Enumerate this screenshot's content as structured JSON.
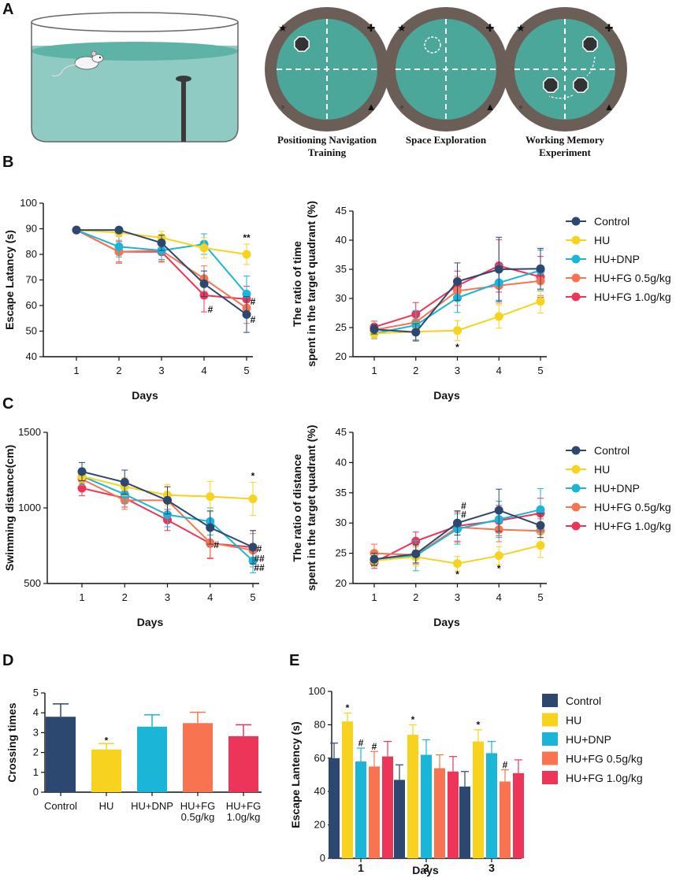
{
  "figure": {
    "panel_labels": [
      "A",
      "B",
      "C",
      "D",
      "E"
    ],
    "series_names": [
      "Control",
      "HU",
      "HU+DNP",
      "HU+FG 0.5g/kg",
      "HU+FG 1.0g/kg"
    ],
    "series_colors": [
      "#2c4770",
      "#f7d31f",
      "#1bb5d8",
      "#f8734f",
      "#ec3559"
    ],
    "pool_colors": {
      "wall": "#666666",
      "water": "#5db3a6",
      "water_light": "#8fcbc2",
      "maze_rim": "#6b5e57",
      "maze_water": "#4aa79a"
    },
    "maze_captions": [
      [
        "Positioning Navigation",
        "Training"
      ],
      [
        "Space Exploration"
      ],
      [
        "Working Memory",
        "Experiment"
      ]
    ],
    "maze_symbols": [
      "★",
      "✚",
      "◦",
      "▲"
    ]
  },
  "chart_data": [
    {
      "id": "B1",
      "type": "line",
      "x": [
        1,
        2,
        3,
        4,
        5
      ],
      "xlabel": "Days",
      "ylabel": "Escape Latancy (s)",
      "ylim": [
        40,
        100
      ],
      "yticks": [
        40,
        50,
        60,
        70,
        80,
        90,
        100
      ],
      "series": [
        {
          "name": "Control",
          "values": [
            89.5,
            89.5,
            84.5,
            68.5,
            56.5
          ],
          "errors": [
            1,
            1,
            3,
            5,
            7
          ]
        },
        {
          "name": "HU",
          "values": [
            89.5,
            88.5,
            86.5,
            82.5,
            80
          ],
          "errors": [
            1,
            1.5,
            2.5,
            4,
            4
          ]
        },
        {
          "name": "HU+DNP",
          "values": [
            89.5,
            83,
            81.5,
            84,
            64.5
          ],
          "errors": [
            1,
            4,
            3.5,
            4,
            7
          ]
        },
        {
          "name": "HU+FG 0.5g/kg",
          "values": [
            89.5,
            81,
            81.5,
            70.5,
            59
          ],
          "errors": [
            1,
            4.5,
            4,
            5,
            6
          ]
        },
        {
          "name": "HU+FG 1.0g/kg",
          "values": [
            89.5,
            81,
            81,
            64,
            62.5
          ],
          "errors": [
            1,
            4,
            4,
            6.5,
            5
          ]
        }
      ],
      "annotations": [
        {
          "text": "**",
          "x": 5,
          "y": 86.5
        },
        {
          "text": "#",
          "x": 4,
          "y": 58.5
        },
        {
          "text": "#",
          "x": 5,
          "y": 61.5
        },
        {
          "text": "#",
          "x": 5,
          "y": 54.5
        }
      ]
    },
    {
      "id": "B2",
      "type": "line",
      "x": [
        1,
        2,
        3,
        4,
        5
      ],
      "xlabel": "Days",
      "ylabel": [
        "The ratio of time",
        "spent in the target quadrant (%)"
      ],
      "ylim": [
        20,
        45
      ],
      "yticks": [
        20,
        25,
        30,
        35,
        40,
        45
      ],
      "series": [
        {
          "name": "Control",
          "values": [
            24.7,
            24.2,
            32.9,
            35.0,
            35.1
          ],
          "errors": [
            0.8,
            1.5,
            3.2,
            5.5,
            3.5
          ]
        },
        {
          "name": "HU",
          "values": [
            24.0,
            24.3,
            24.5,
            26.9,
            29.5
          ],
          "errors": [
            0.8,
            1.5,
            1.7,
            2,
            2
          ]
        },
        {
          "name": "HU+DNP",
          "values": [
            24.0,
            25.4,
            30.1,
            32.7,
            34.8
          ],
          "errors": [
            0.8,
            2.5,
            2.5,
            3,
            3.5
          ]
        },
        {
          "name": "HU+FG 0.5g/kg",
          "values": [
            24.6,
            25.9,
            31.3,
            32.2,
            33.0
          ],
          "errors": [
            1.5,
            2,
            2.5,
            3,
            2.5
          ]
        },
        {
          "name": "HU+FG 1.0g/kg",
          "values": [
            25.1,
            27.3,
            32.2,
            35.6,
            33.7
          ],
          "errors": [
            1,
            2,
            2.5,
            4.5,
            3.5
          ]
        }
      ],
      "annotations": [
        {
          "text": "*",
          "x": 3,
          "y": 21.6
        }
      ]
    },
    {
      "id": "C1",
      "type": "line",
      "x": [
        1,
        2,
        3,
        4,
        5
      ],
      "xlabel": "Days",
      "ylabel": "Swimming distance(cm)",
      "ylim": [
        500,
        1500
      ],
      "yticks": [
        500,
        1000,
        1500
      ],
      "series": [
        {
          "name": "Control",
          "values": [
            1240,
            1170,
            1050,
            870,
            740
          ],
          "errors": [
            60,
            80,
            90,
            110,
            110
          ]
        },
        {
          "name": "HU",
          "values": [
            1210,
            1140,
            1085,
            1075,
            1060
          ],
          "errors": [
            40,
            60,
            70,
            100,
            110
          ]
        },
        {
          "name": "HU+DNP",
          "values": [
            1210,
            1090,
            955,
            910,
            650
          ],
          "errors": [
            50,
            60,
            80,
            90,
            80
          ]
        },
        {
          "name": "HU+FG 0.5g/kg",
          "values": [
            1190,
            1050,
            1050,
            770,
            720
          ],
          "errors": [
            40,
            60,
            90,
            100,
            110
          ]
        },
        {
          "name": "HU+FG 1.0g/kg",
          "values": [
            1130,
            1065,
            920,
            765,
            740
          ],
          "errors": [
            50,
            60,
            70,
            100,
            110
          ]
        }
      ],
      "annotations": [
        {
          "text": "*",
          "x": 5,
          "y": 1210
        },
        {
          "text": "#",
          "x": 4,
          "y": 755
        },
        {
          "text": "#",
          "x": 5,
          "y": 730
        },
        {
          "text": "##",
          "x": 5,
          "y": 665
        },
        {
          "text": "##",
          "x": 5,
          "y": 605
        }
      ]
    },
    {
      "id": "C2",
      "type": "line",
      "x": [
        1,
        2,
        3,
        4,
        5
      ],
      "xlabel": "Days",
      "ylabel": [
        "The ratio of distance",
        "spent in the target quadrant (%)"
      ],
      "ylim": [
        20,
        45
      ],
      "yticks": [
        20,
        25,
        30,
        35,
        40,
        45
      ],
      "series": [
        {
          "name": "Control",
          "values": [
            24.0,
            24.9,
            30.0,
            32.1,
            29.6
          ],
          "errors": [
            1,
            1.5,
            2,
            3.5,
            2
          ]
        },
        {
          "name": "HU",
          "values": [
            23.8,
            24.4,
            23.3,
            24.6,
            26.3
          ],
          "errors": [
            1,
            1.5,
            1.2,
            1.5,
            2
          ]
        },
        {
          "name": "HU+DNP",
          "values": [
            23.9,
            24.6,
            29.0,
            30.6,
            32.2
          ],
          "errors": [
            1,
            2.5,
            2.5,
            3,
            3.5
          ]
        },
        {
          "name": "HU+FG 0.5g/kg",
          "values": [
            25.0,
            24.7,
            29.3,
            28.9,
            28.7
          ],
          "errors": [
            1.5,
            1.5,
            2.5,
            2,
            2
          ]
        },
        {
          "name": "HU+FG 1.0g/kg",
          "values": [
            23.5,
            27.0,
            29.5,
            30.4,
            31.6
          ],
          "errors": [
            1,
            1.5,
            2.5,
            2.5,
            2.5
          ]
        }
      ],
      "annotations": [
        {
          "text": "#",
          "x": 3,
          "y": 32.8
        },
        {
          "text": "#",
          "x": 3,
          "y": 31.4
        },
        {
          "text": "*",
          "x": 3,
          "y": 21.5
        },
        {
          "text": "*",
          "x": 4,
          "y": 22.5
        }
      ]
    },
    {
      "id": "D",
      "type": "bar",
      "categories": [
        "Control",
        "HU",
        "HU+DNP",
        "HU+FG 0.5g/kg",
        "HU+FG 1.0g/kg"
      ],
      "category_labels": [
        [
          "Control"
        ],
        [
          "HU"
        ],
        [
          "HU+DNP"
        ],
        [
          "HU+FG",
          "0.5g/kg"
        ],
        [
          "HU+FG",
          "1.0g/kg"
        ]
      ],
      "values": [
        3.8,
        2.15,
        3.3,
        3.48,
        2.82
      ],
      "errors": [
        0.65,
        0.3,
        0.6,
        0.55,
        0.58
      ],
      "ylabel": "Crossing times",
      "xlabel": "",
      "ylim": [
        0,
        5
      ],
      "yticks": [
        0,
        1,
        2,
        3,
        4,
        5
      ],
      "annotations": [
        {
          "text": "*",
          "category": 1,
          "y": 2.6
        }
      ]
    },
    {
      "id": "E",
      "type": "bar",
      "categories": [
        "1",
        "2",
        "3"
      ],
      "xlabel": "Days",
      "ylabel": "Escape Lantency (s)",
      "ylim": [
        0,
        100
      ],
      "yticks": [
        0,
        20,
        40,
        60,
        80,
        100
      ],
      "series": [
        {
          "name": "Control",
          "values": [
            60,
            47,
            43
          ],
          "errors": [
            9,
            9,
            9
          ]
        },
        {
          "name": "HU",
          "values": [
            82,
            74,
            70
          ],
          "errors": [
            5,
            6,
            7
          ]
        },
        {
          "name": "HU+DNP",
          "values": [
            58,
            62,
            63
          ],
          "errors": [
            8,
            9,
            7
          ]
        },
        {
          "name": "HU+FG 0.5g/kg",
          "values": [
            55,
            54,
            46
          ],
          "errors": [
            9,
            8,
            7
          ]
        },
        {
          "name": "HU+FG 1.0g/kg",
          "values": [
            61,
            52,
            51
          ],
          "errors": [
            9,
            9,
            8
          ]
        }
      ],
      "annotations": [
        {
          "text": "*",
          "group": 0,
          "series": 1,
          "y": 90
        },
        {
          "text": "#",
          "group": 0,
          "series": 2,
          "y": 69
        },
        {
          "text": "#",
          "group": 0,
          "series": 3,
          "y": 67
        },
        {
          "text": "*",
          "group": 1,
          "series": 1,
          "y": 83
        },
        {
          "text": "*",
          "group": 2,
          "series": 1,
          "y": 80
        },
        {
          "text": "#",
          "group": 2,
          "series": 3,
          "y": 56
        }
      ]
    }
  ]
}
